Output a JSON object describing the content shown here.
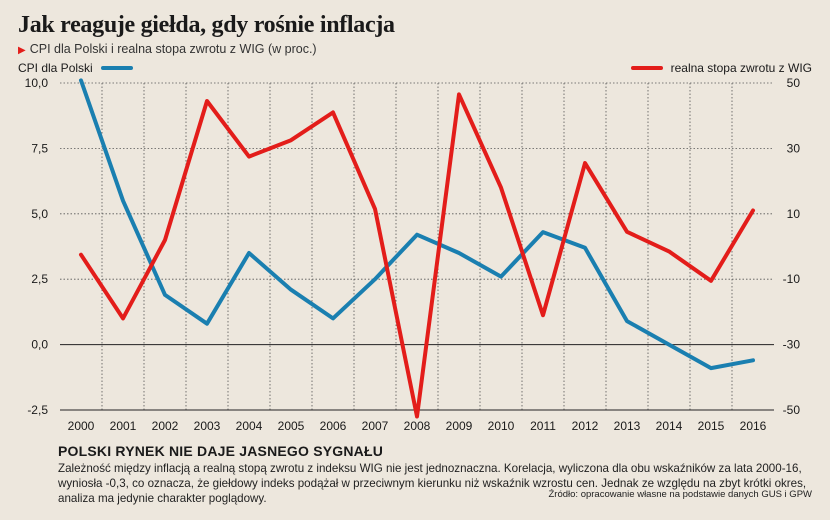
{
  "title": "Jak reaguje giełda, gdy rośnie inflacja",
  "subtitle": "CPI dla Polski i realna stopa zwrotu z WIG (w proc.)",
  "footer": {
    "heading": "POLSKI RYNEK NIE DAJE JASNEGO SYGNAŁU",
    "text": "Zależność między inflacją a realną stopą zwrotu z indeksu WIG nie jest jednoznaczna. Korelacja, wyliczona dla obu wskaźników za lata 2000-16, wyniosła -0,3, co oznacza, że giełdowy indeks podążał w przeciwnym kierunku niż wskaźnik wzrostu cen. Jednak ze względu na zbyt krótki okres, analiza ma jedynie charakter poglądowy.",
    "source": "Źródło: opracowanie własne na podstawie danych GUS i GPW"
  },
  "chart_data": {
    "type": "line",
    "title": "Jak reaguje giełda, gdy rośnie inflacja",
    "subtitle": "CPI dla Polski i realna stopa zwrotu z WIG (w proc.)",
    "categories": [
      "2000",
      "2001",
      "2002",
      "2003",
      "2004",
      "2005",
      "2006",
      "2007",
      "2008",
      "2009",
      "2010",
      "2011",
      "2012",
      "2013",
      "2014",
      "2015",
      "2016"
    ],
    "left_axis": {
      "ylim": [
        -2.5,
        10.0
      ],
      "ticks": [
        "10,0",
        "7,5",
        "5,0",
        "2,5",
        "0,0",
        "-2,5"
      ],
      "tick_values": [
        10,
        7.5,
        5,
        2.5,
        0,
        -2.5
      ]
    },
    "right_axis": {
      "ylim": [
        -50,
        50
      ],
      "ticks": [
        "50",
        "30",
        "10",
        "-10",
        "-30",
        "-50"
      ],
      "tick_values": [
        50,
        30,
        10,
        -10,
        -30,
        -50
      ]
    },
    "grid": true,
    "legend": [
      "top-left",
      "top-right"
    ],
    "series": [
      {
        "name": "CPI dla Polski",
        "axis": "left",
        "color": "#1a7fb0",
        "values": [
          10.1,
          5.5,
          1.9,
          0.8,
          3.5,
          2.1,
          1.0,
          2.5,
          4.2,
          3.5,
          2.6,
          4.3,
          3.7,
          0.9,
          0.0,
          -0.9,
          -0.6
        ]
      },
      {
        "name": "realna stopa zwrotu z WIG",
        "axis": "right",
        "color": "#e31d1a",
        "values": [
          -2.5,
          -22.0,
          2.0,
          44.5,
          27.5,
          32.5,
          41.0,
          11.5,
          -52.0,
          46.5,
          18.0,
          -21.0,
          25.5,
          4.5,
          -1.5,
          -10.5,
          11.0
        ]
      }
    ]
  }
}
